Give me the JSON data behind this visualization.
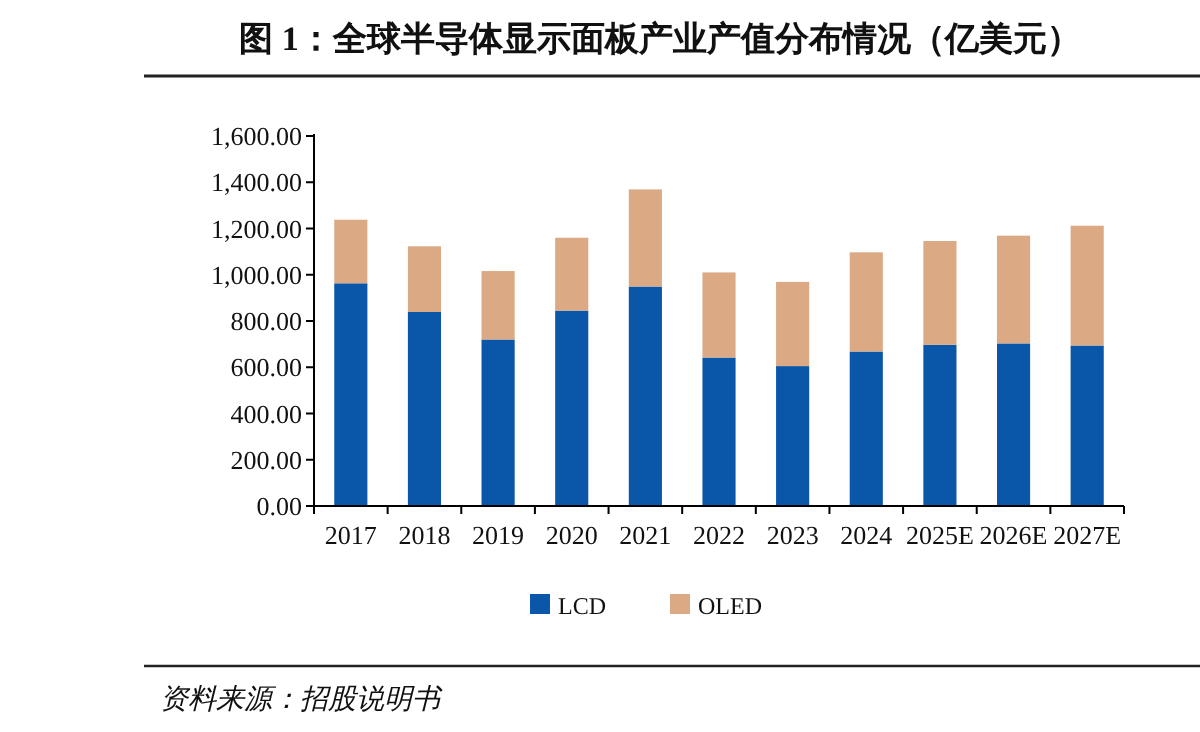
{
  "chart_data": {
    "type": "bar",
    "title": "图 1：全球半导体显示面板产业产值分布情况（亿美元）",
    "annotations": [
      "资料来源：招股说明书"
    ],
    "categories": [
      "2017",
      "2018",
      "2019",
      "2020",
      "2021",
      "2022",
      "2023",
      "2024",
      "2025E",
      "2026E",
      "2027E"
    ],
    "stacked": true,
    "legend": "bottom",
    "grid": false,
    "ylim": [
      0,
      1600
    ],
    "yticks": [
      {
        "value": 0,
        "label": "0.00"
      },
      {
        "value": 200,
        "label": "200.00"
      },
      {
        "value": 400,
        "label": "400.00"
      },
      {
        "value": 600,
        "label": "600.00"
      },
      {
        "value": 800,
        "label": "800.00"
      },
      {
        "value": 1000,
        "label": "1,000.00"
      },
      {
        "value": 1200,
        "label": "1,200.00"
      },
      {
        "value": 1400,
        "label": "1,400.00"
      },
      {
        "value": 1600,
        "label": "1,600.00"
      }
    ],
    "series": [
      {
        "name": "LCD",
        "color": "#0a56a8",
        "values": [
          963,
          839,
          720,
          845,
          949,
          642,
          605,
          668,
          697,
          703,
          694
        ]
      },
      {
        "name": "OLED",
        "color": "#dba983",
        "values": [
          275,
          284,
          296,
          315,
          420,
          368,
          364,
          429,
          449,
          466,
          518
        ]
      }
    ]
  }
}
